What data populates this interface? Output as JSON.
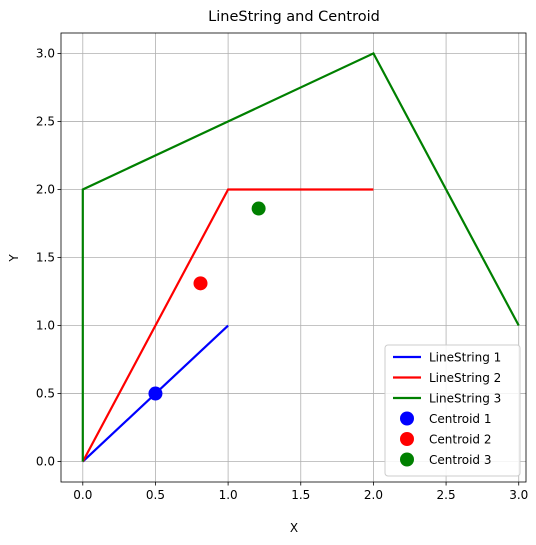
{
  "chart_data": {
    "type": "line",
    "title": "LineString and Centroid",
    "xlabel": "X",
    "ylabel": "Y",
    "xlim": [
      -0.15,
      3.05
    ],
    "ylim": [
      -0.15,
      3.15
    ],
    "xticks": [
      0.0,
      0.5,
      1.0,
      1.5,
      2.0,
      2.5,
      3.0
    ],
    "xtick_labels": [
      "0.0",
      "0.5",
      "1.0",
      "1.5",
      "2.0",
      "2.5",
      "3.0"
    ],
    "yticks": [
      0.0,
      0.5,
      1.0,
      1.5,
      2.0,
      2.5,
      3.0
    ],
    "ytick_labels": [
      "0.0",
      "0.5",
      "1.0",
      "1.5",
      "2.0",
      "2.5",
      "3.0"
    ],
    "grid": true,
    "legend_position": "lower-right",
    "series": [
      {
        "name": "LineString 1",
        "kind": "line",
        "color": "#0000ff",
        "points": [
          [
            0,
            0
          ],
          [
            1,
            1
          ]
        ]
      },
      {
        "name": "LineString 2",
        "kind": "line",
        "color": "#ff0000",
        "points": [
          [
            0,
            0
          ],
          [
            1,
            2
          ],
          [
            2,
            2
          ]
        ]
      },
      {
        "name": "LineString 3",
        "kind": "line",
        "color": "#008000",
        "points": [
          [
            0,
            0
          ],
          [
            0,
            2
          ],
          [
            2,
            3
          ],
          [
            3,
            1
          ]
        ]
      },
      {
        "name": "Centroid 1",
        "kind": "point",
        "color": "#0000ff",
        "points": [
          [
            0.5,
            0.5
          ]
        ]
      },
      {
        "name": "Centroid 2",
        "kind": "point",
        "color": "#ff0000",
        "points": [
          [
            0.81,
            1.31
          ]
        ]
      },
      {
        "name": "Centroid 3",
        "kind": "point",
        "color": "#008000",
        "points": [
          [
            1.21,
            1.86
          ]
        ]
      }
    ]
  }
}
